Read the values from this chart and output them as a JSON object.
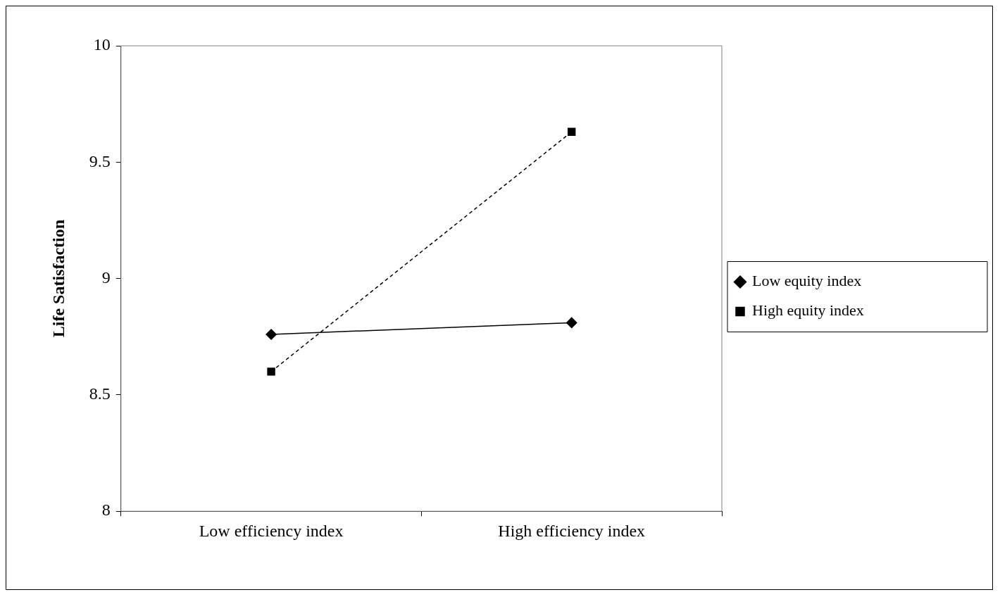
{
  "chart_data": {
    "type": "line",
    "ylabel": "Life Satisfaction",
    "categories": [
      "Low efficiency index",
      "High efficiency index"
    ],
    "series": [
      {
        "name": "Low equity index",
        "color": "#000000",
        "values": [
          8.76,
          8.81
        ],
        "marker": "diamond",
        "line_style": "solid"
      },
      {
        "name": "High equity index",
        "color": "#000000",
        "values": [
          8.6,
          9.63
        ],
        "marker": "square",
        "line_style": "dashed"
      }
    ],
    "ylim": [
      8,
      10
    ],
    "yticks": [
      8,
      8.5,
      9,
      9.5,
      10
    ],
    "grid": false,
    "legend": "right"
  }
}
